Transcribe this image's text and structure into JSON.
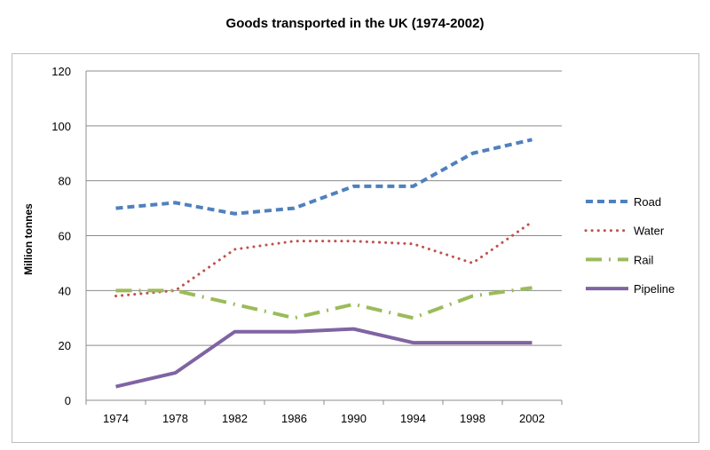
{
  "chart_data": {
    "type": "line",
    "title": "Goods transported in the UK (1974-2002)",
    "xlabel": "",
    "ylabel": "Million tonnes",
    "categories": [
      "1974",
      "1978",
      "1982",
      "1986",
      "1990",
      "1994",
      "1998",
      "2002"
    ],
    "ylim": [
      0,
      120
    ],
    "yticks": [
      0,
      20,
      40,
      60,
      80,
      100,
      120
    ],
    "grid": true,
    "legend": "right",
    "series": [
      {
        "name": "Road",
        "values": [
          70,
          72,
          68,
          70,
          78,
          78,
          90,
          95
        ],
        "color": "#4f81bd",
        "dash": "8,5"
      },
      {
        "name": "Water",
        "values": [
          38,
          40,
          55,
          58,
          58,
          57,
          50,
          65
        ],
        "color": "#c0504d",
        "dash": "2,5"
      },
      {
        "name": "Rail",
        "values": [
          40,
          40,
          35,
          30,
          35,
          30,
          38,
          41
        ],
        "color": "#9bbb59",
        "dash": "18,8,2,8"
      },
      {
        "name": "Pipeline",
        "values": [
          5,
          10,
          25,
          25,
          26,
          21,
          21,
          21
        ],
        "color": "#8064a2",
        "dash": ""
      }
    ]
  }
}
